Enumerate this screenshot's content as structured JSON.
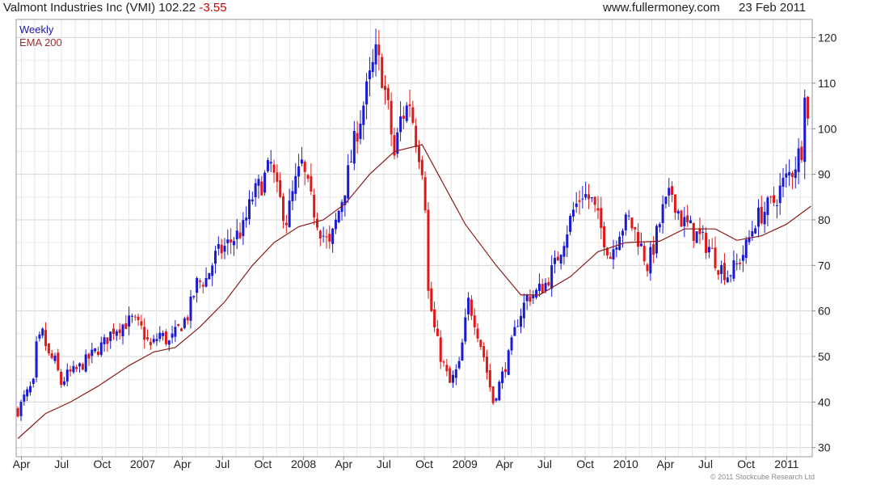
{
  "header": {
    "security": "Valmont Industries Inc (VMI)",
    "last": "102.22",
    "change": "-3.55",
    "site": "www.fullermoney.com",
    "date": "23 Feb 2011"
  },
  "footer": {
    "copyright": "© 2011 Stockcube Research Ltd"
  },
  "colors": {
    "up": "#1a1ad0",
    "down": "#e01818",
    "ema": "#8b1a1a",
    "grid": "#d4d4d4"
  },
  "chart_data": {
    "type": "candlestick",
    "interval_label": "Weekly",
    "ylim": [
      28,
      124
    ],
    "y_ticks": [
      30,
      40,
      50,
      60,
      70,
      80,
      90,
      100,
      110,
      120
    ],
    "x_range": [
      "2006-03-20",
      "2011-02-28"
    ],
    "x_ticks": [
      {
        "date": "2006-04-01",
        "label": "Apr"
      },
      {
        "date": "2006-07-01",
        "label": "Jul"
      },
      {
        "date": "2006-10-01",
        "label": "Oct"
      },
      {
        "date": "2007-01-01",
        "label": "2007"
      },
      {
        "date": "2007-04-01",
        "label": "Apr"
      },
      {
        "date": "2007-07-01",
        "label": "Jul"
      },
      {
        "date": "2007-10-01",
        "label": "Oct"
      },
      {
        "date": "2008-01-01",
        "label": "2008"
      },
      {
        "date": "2008-04-01",
        "label": "Apr"
      },
      {
        "date": "2008-07-01",
        "label": "Jul"
      },
      {
        "date": "2008-10-01",
        "label": "Oct"
      },
      {
        "date": "2009-01-01",
        "label": "2009"
      },
      {
        "date": "2009-04-01",
        "label": "Apr"
      },
      {
        "date": "2009-07-01",
        "label": "Jul"
      },
      {
        "date": "2009-10-01",
        "label": "Oct"
      },
      {
        "date": "2010-01-01",
        "label": "2010"
      },
      {
        "date": "2010-04-01",
        "label": "Apr"
      },
      {
        "date": "2010-07-01",
        "label": "Jul"
      },
      {
        "date": "2010-10-01",
        "label": "Oct"
      },
      {
        "date": "2011-01-01",
        "label": "2011"
      }
    ],
    "close_path": [
      [
        "2006-03-24",
        38
      ],
      [
        "2006-04-07",
        41
      ],
      [
        "2006-04-28",
        44
      ],
      [
        "2006-05-05",
        52
      ],
      [
        "2006-05-19",
        55
      ],
      [
        "2006-06-02",
        50
      ],
      [
        "2006-06-16",
        49
      ],
      [
        "2006-06-30",
        44
      ],
      [
        "2006-07-14",
        46
      ],
      [
        "2006-08-04",
        47
      ],
      [
        "2006-08-25",
        49
      ],
      [
        "2006-09-15",
        51
      ],
      [
        "2006-10-06",
        53
      ],
      [
        "2006-10-27",
        56
      ],
      [
        "2006-11-17",
        57
      ],
      [
        "2006-12-08",
        58
      ],
      [
        "2006-12-29",
        56
      ],
      [
        "2007-01-19",
        52
      ],
      [
        "2007-02-09",
        55
      ],
      [
        "2007-03-02",
        53
      ],
      [
        "2007-03-23",
        56
      ],
      [
        "2007-04-13",
        59
      ],
      [
        "2007-05-04",
        66
      ],
      [
        "2007-05-25",
        67
      ],
      [
        "2007-06-15",
        72
      ],
      [
        "2007-07-06",
        74
      ],
      [
        "2007-07-27",
        76
      ],
      [
        "2007-08-17",
        78
      ],
      [
        "2007-09-07",
        85
      ],
      [
        "2007-09-28",
        88
      ],
      [
        "2007-10-19",
        92
      ],
      [
        "2007-11-02",
        86
      ],
      [
        "2007-11-23",
        80
      ],
      [
        "2007-12-14",
        88
      ],
      [
        "2007-12-28",
        92
      ],
      [
        "2008-01-18",
        84
      ],
      [
        "2008-02-08",
        78
      ],
      [
        "2008-02-29",
        74
      ],
      [
        "2008-03-21",
        82
      ],
      [
        "2008-04-11",
        90
      ],
      [
        "2008-05-02",
        100
      ],
      [
        "2008-05-23",
        108
      ],
      [
        "2008-06-13",
        116
      ],
      [
        "2008-06-27",
        112
      ],
      [
        "2008-07-11",
        104
      ],
      [
        "2008-07-25",
        94
      ],
      [
        "2008-08-08",
        102
      ],
      [
        "2008-08-29",
        106
      ],
      [
        "2008-09-12",
        98
      ],
      [
        "2008-09-26",
        92
      ],
      [
        "2008-10-03",
        84
      ],
      [
        "2008-10-10",
        64
      ],
      [
        "2008-10-24",
        56
      ],
      [
        "2008-11-07",
        50
      ],
      [
        "2008-11-28",
        44
      ],
      [
        "2008-12-19",
        48
      ],
      [
        "2009-01-09",
        62
      ],
      [
        "2009-01-23",
        58
      ],
      [
        "2009-02-13",
        50
      ],
      [
        "2009-03-06",
        40
      ],
      [
        "2009-03-20",
        44
      ],
      [
        "2009-04-10",
        50
      ],
      [
        "2009-05-01",
        58
      ],
      [
        "2009-05-22",
        63
      ],
      [
        "2009-06-12",
        64
      ],
      [
        "2009-07-03",
        66
      ],
      [
        "2009-07-24",
        70
      ],
      [
        "2009-08-14",
        76
      ],
      [
        "2009-09-04",
        82
      ],
      [
        "2009-09-25",
        86
      ],
      [
        "2009-10-16",
        84
      ],
      [
        "2009-11-06",
        78
      ],
      [
        "2009-11-27",
        72
      ],
      [
        "2009-12-18",
        78
      ],
      [
        "2010-01-08",
        80
      ],
      [
        "2010-01-29",
        76
      ],
      [
        "2010-02-19",
        70
      ],
      [
        "2010-03-05",
        74
      ],
      [
        "2010-03-26",
        82
      ],
      [
        "2010-04-16",
        86
      ],
      [
        "2010-05-07",
        80
      ],
      [
        "2010-05-28",
        78
      ],
      [
        "2010-06-18",
        76
      ],
      [
        "2010-07-09",
        74
      ],
      [
        "2010-07-30",
        70
      ],
      [
        "2010-08-20",
        68
      ],
      [
        "2010-09-10",
        70
      ],
      [
        "2010-10-01",
        74
      ],
      [
        "2010-10-22",
        80
      ],
      [
        "2010-11-12",
        82
      ],
      [
        "2010-12-03",
        84
      ],
      [
        "2010-12-24",
        88
      ],
      [
        "2011-01-14",
        91
      ],
      [
        "2011-02-04",
        96
      ],
      [
        "2011-02-11",
        110
      ],
      [
        "2011-02-18",
        102.22
      ]
    ],
    "ema_200": [
      [
        "2006-03-24",
        32
      ],
      [
        "2006-05-26",
        37.5
      ],
      [
        "2006-07-21",
        40
      ],
      [
        "2006-09-22",
        43.5
      ],
      [
        "2006-12-01",
        48
      ],
      [
        "2007-01-26",
        51
      ],
      [
        "2007-03-16",
        52
      ],
      [
        "2007-05-11",
        56.5
      ],
      [
        "2007-07-06",
        62
      ],
      [
        "2007-09-07",
        70
      ],
      [
        "2007-10-26",
        75
      ],
      [
        "2007-12-21",
        78.5
      ],
      [
        "2008-02-15",
        80
      ],
      [
        "2008-04-04",
        83.5
      ],
      [
        "2008-05-30",
        90
      ],
      [
        "2008-07-25",
        95
      ],
      [
        "2008-09-26",
        96.5
      ],
      [
        "2008-11-07",
        89
      ],
      [
        "2009-01-02",
        79
      ],
      [
        "2009-03-13",
        70
      ],
      [
        "2009-05-08",
        63.5
      ],
      [
        "2009-06-19",
        63.5
      ],
      [
        "2009-08-28",
        67.5
      ],
      [
        "2009-10-30",
        73
      ],
      [
        "2010-01-01",
        75
      ],
      [
        "2010-03-19",
        75.3
      ],
      [
        "2010-05-14",
        78
      ],
      [
        "2010-07-23",
        78
      ],
      [
        "2010-09-10",
        75.5
      ],
      [
        "2010-11-05",
        76.5
      ],
      [
        "2010-12-31",
        79
      ],
      [
        "2011-02-25",
        83
      ]
    ]
  }
}
